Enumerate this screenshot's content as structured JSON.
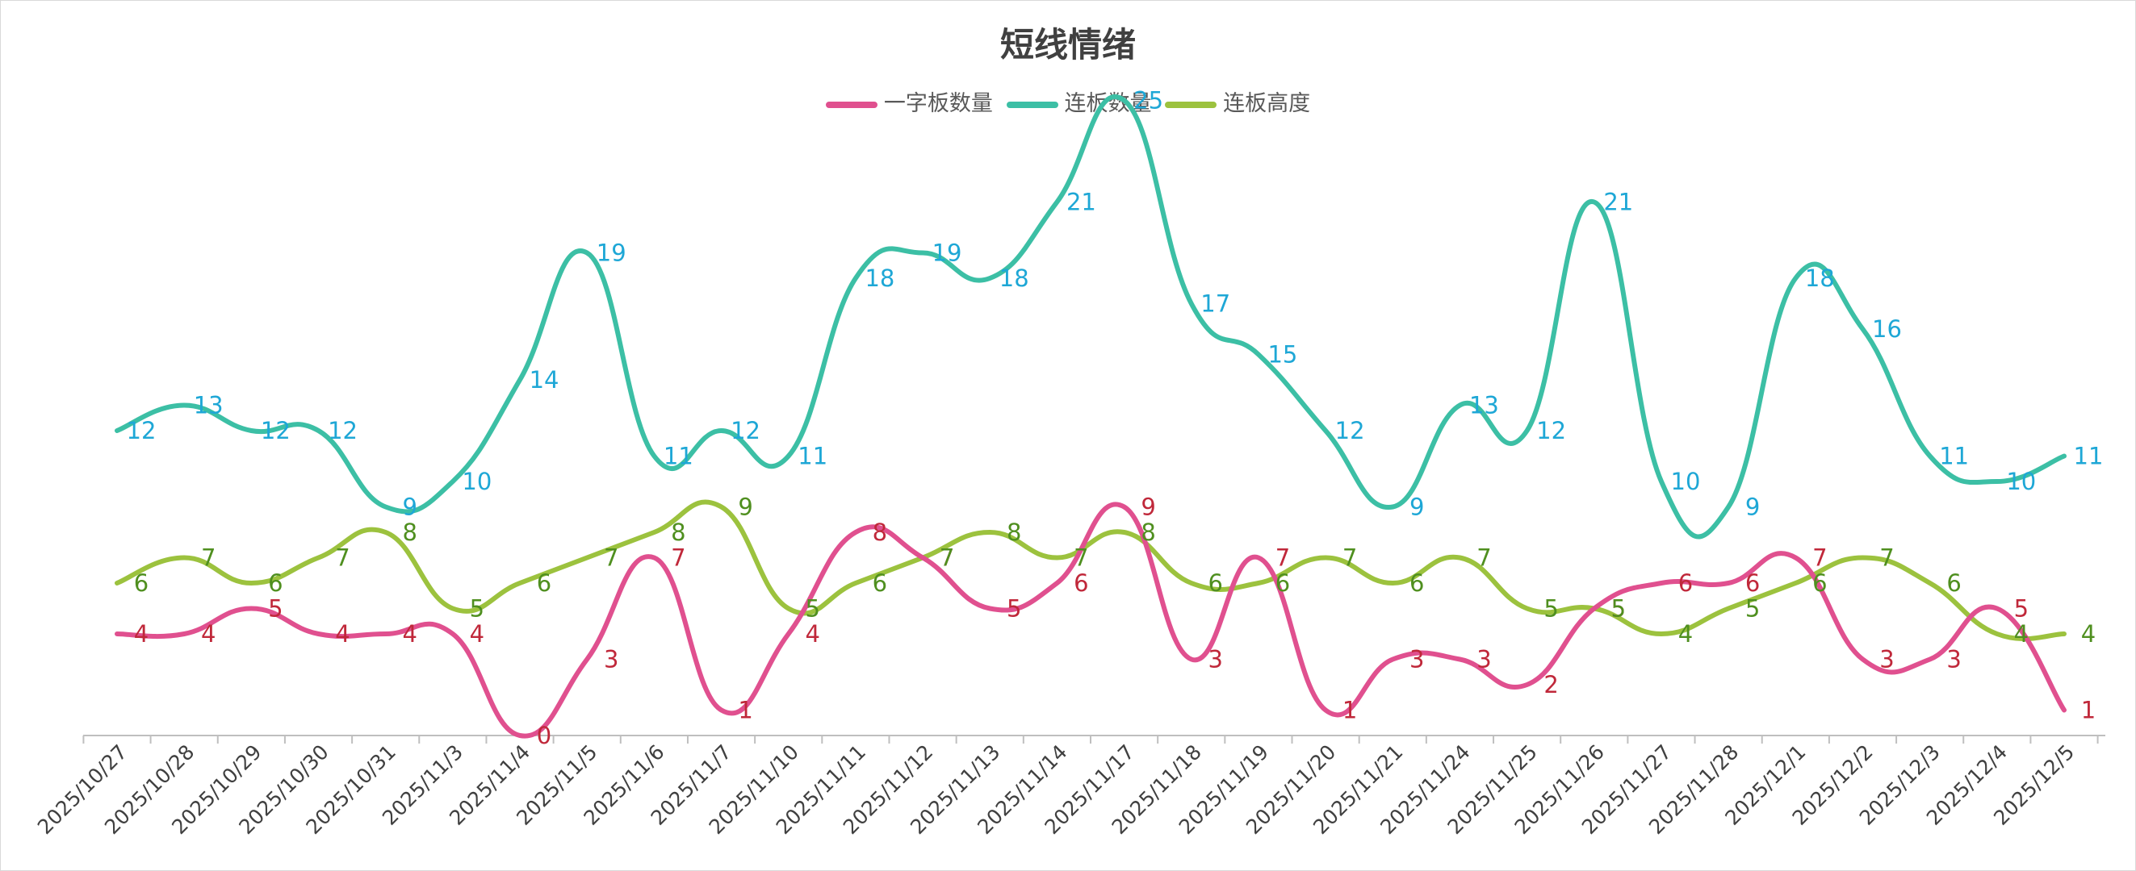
{
  "chart_data": {
    "type": "line",
    "title": "短线情绪",
    "smooth": true,
    "legend_position": "top",
    "grid": false,
    "categories": [
      "2025/10/27",
      "2025/10/28",
      "2025/10/29",
      "2025/10/30",
      "2025/10/31",
      "2025/11/3",
      "2025/11/4",
      "2025/11/5",
      "2025/11/6",
      "2025/11/7",
      "2025/11/10",
      "2025/11/11",
      "2025/11/12",
      "2025/11/13",
      "2025/11/14",
      "2025/11/17",
      "2025/11/18",
      "2025/11/19",
      "2025/11/20",
      "2025/11/21",
      "2025/11/24",
      "2025/11/25",
      "2025/11/26",
      "2025/11/27",
      "2025/11/28",
      "2025/12/1",
      "2025/12/2",
      "2025/12/3",
      "2025/12/4",
      "2025/12/5"
    ],
    "ylim": [
      0,
      28
    ],
    "series": [
      {
        "name": "一字板数量",
        "color": "#e0508f",
        "label_color": "#c0283a",
        "values": [
          4,
          4,
          5,
          4,
          4,
          4,
          0,
          3,
          7,
          1,
          4,
          8,
          7,
          5,
          6,
          9,
          3,
          7,
          1,
          3,
          3,
          2,
          5,
          6,
          6,
          7,
          3,
          3,
          5,
          1
        ]
      },
      {
        "name": "连板数量",
        "color": "#3cbfa5",
        "label_color": "#1ea7d6",
        "values": [
          12,
          13,
          12,
          12,
          9,
          10,
          14,
          19,
          11,
          12,
          11,
          18,
          19,
          18,
          21,
          25,
          17,
          15,
          12,
          9,
          13,
          12,
          21,
          10,
          9,
          18,
          16,
          11,
          10,
          11
        ]
      },
      {
        "name": "连板高度",
        "color": "#9cc23e",
        "label_color": "#4f8f1f",
        "values": [
          6,
          7,
          6,
          7,
          8,
          5,
          6,
          7,
          8,
          9,
          5,
          6,
          7,
          8,
          7,
          8,
          6,
          6,
          7,
          6,
          7,
          5,
          5,
          4,
          5,
          6,
          7,
          6,
          4,
          4
        ]
      }
    ]
  }
}
